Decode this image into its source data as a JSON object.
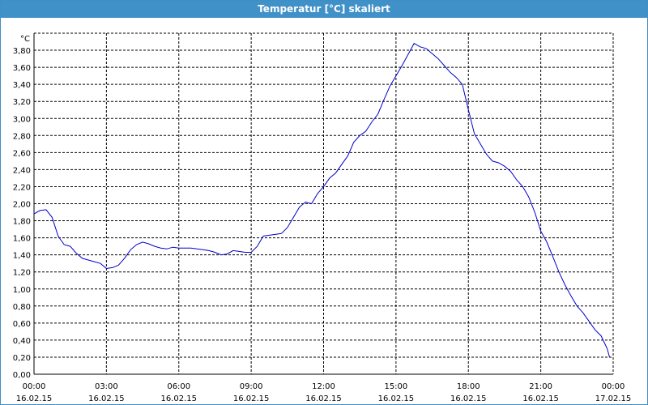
{
  "window": {
    "title": "Temperatur [°C] skaliert"
  },
  "chart_data": {
    "type": "line",
    "title": "Temperatur [°C] skaliert",
    "ylabel": "°C",
    "xlabel": "",
    "ylim": [
      0,
      4.0
    ],
    "xlim_hours": [
      0,
      24
    ],
    "grid": true,
    "y_ticks": [
      "0,00",
      "0,20",
      "0,40",
      "0,60",
      "0,80",
      "1,00",
      "1,20",
      "1,40",
      "1,60",
      "1,80",
      "2,00",
      "2,20",
      "2,40",
      "2,60",
      "2,80",
      "3,00",
      "3,20",
      "3,40",
      "3,60",
      "3,80"
    ],
    "x_ticks": [
      {
        "time": "00:00",
        "date": "16.02.15"
      },
      {
        "time": "03:00",
        "date": "16.02.15"
      },
      {
        "time": "06:00",
        "date": "16.02.15"
      },
      {
        "time": "09:00",
        "date": "16.02.15"
      },
      {
        "time": "12:00",
        "date": "16.02.15"
      },
      {
        "time": "15:00",
        "date": "16.02.15"
      },
      {
        "time": "18:00",
        "date": "16.02.15"
      },
      {
        "time": "21:00",
        "date": "16.02.15"
      },
      {
        "time": "00:00",
        "date": "17.02.15"
      }
    ],
    "colors": {
      "line": "#0000cc",
      "grid": "#000000",
      "title_bar": "#4191c9"
    },
    "series": [
      {
        "x": [
          0.0,
          0.25,
          0.5,
          0.75,
          1.0,
          1.25,
          1.5,
          1.75,
          2.0,
          2.25,
          2.5,
          2.75,
          3.0,
          3.25,
          3.5,
          3.75,
          4.0,
          4.25,
          4.5,
          4.75,
          5.0,
          5.25,
          5.5,
          5.75,
          6.0,
          6.25,
          6.5,
          6.75,
          7.0,
          7.25,
          7.5,
          7.75,
          8.0,
          8.25,
          8.5,
          8.75,
          9.0,
          9.25,
          9.5,
          9.75,
          10.0,
          10.25,
          10.5,
          10.75,
          11.0,
          11.25,
          11.5,
          11.75,
          12.0,
          12.25,
          12.5,
          12.75,
          13.0,
          13.25,
          13.5,
          13.75,
          14.0,
          14.25,
          14.5,
          14.75,
          15.0,
          15.25,
          15.5,
          15.75,
          16.0,
          16.25,
          16.5,
          16.75,
          17.0,
          17.25,
          17.5,
          17.75,
          18.0,
          18.25,
          18.5,
          18.75,
          19.0,
          19.25,
          19.5,
          19.75,
          20.0,
          20.25,
          20.5,
          20.75,
          21.0,
          21.25,
          21.5,
          21.75,
          22.0,
          22.25,
          22.5,
          22.75,
          23.0,
          23.25,
          23.5,
          23.75,
          23.85
        ],
        "values": [
          1.88,
          1.92,
          1.93,
          1.84,
          1.62,
          1.52,
          1.5,
          1.42,
          1.36,
          1.34,
          1.32,
          1.3,
          1.24,
          1.25,
          1.28,
          1.36,
          1.46,
          1.52,
          1.55,
          1.53,
          1.5,
          1.48,
          1.47,
          1.49,
          1.48,
          1.48,
          1.48,
          1.47,
          1.46,
          1.45,
          1.43,
          1.4,
          1.41,
          1.45,
          1.44,
          1.43,
          1.43,
          1.5,
          1.62,
          1.63,
          1.64,
          1.65,
          1.72,
          1.84,
          1.96,
          2.02,
          2.0,
          2.12,
          2.2,
          2.3,
          2.36,
          2.46,
          2.56,
          2.72,
          2.8,
          2.85,
          2.96,
          3.05,
          3.22,
          3.38,
          3.5,
          3.62,
          3.75,
          3.88,
          3.84,
          3.82,
          3.76,
          3.7,
          3.62,
          3.54,
          3.48,
          3.4,
          3.1,
          2.82,
          2.7,
          2.58,
          2.5,
          2.48,
          2.44,
          2.38,
          2.28,
          2.2,
          2.08,
          1.9,
          1.68,
          1.55,
          1.38,
          1.2,
          1.05,
          0.92,
          0.8,
          0.72,
          0.62,
          0.52,
          0.45,
          0.3,
          0.2
        ]
      }
    ]
  }
}
